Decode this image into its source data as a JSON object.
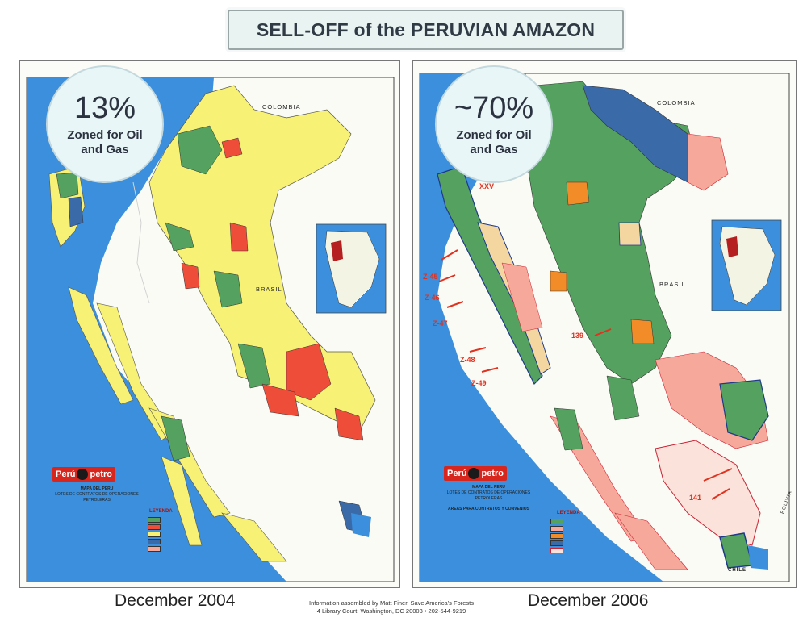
{
  "title": "SELL-OFF of the PERUVIAN AMAZON",
  "colors": {
    "ocean": "#3b8fdc",
    "oil_blocks_yellow": "#f7f275",
    "green_blocks": "#55a15f",
    "red_blocks": "#ee4d3a",
    "pink_blocks": "#f6a99b",
    "blue_blocks": "#3b6aa8",
    "orange_blocks": "#f28c28",
    "title_box_bg": "#e8f3f2"
  },
  "left_map": {
    "percent": "13%",
    "percent_caption": "Zoned for Oil and Gas",
    "date": "December 2004",
    "country_labels": {
      "colombia": "COLOMBIA",
      "brasil": "BRASIL"
    },
    "logo": {
      "left": "Perú",
      "right": "petro"
    },
    "map_title": "MAPA DEL PERU",
    "map_subtitle": "LOTES DE CONTRATOS DE OPERACIONES PETROLERAS",
    "legend_title": "LEYENDA"
  },
  "right_map": {
    "percent": "~70%",
    "percent_caption": "Zoned for Oil and Gas",
    "date": "December 2006",
    "country_labels": {
      "colombia": "COLOMBIA",
      "brasil": "BRASIL",
      "bolivia": "BOLIVIA",
      "chile": "CHILE"
    },
    "logo": {
      "left": "Perú",
      "right": "petro"
    },
    "map_title": "MAPA DEL PERU",
    "map_subtitle": "LOTES DE CONTRATOS DE OPERACIONES PETROLERAS",
    "map_subtitle2": "AREAS PARA CONTRATOS Y CONVENIOS",
    "legend_title": "LEYENDA",
    "lot_labels": [
      "XXV",
      "Z-45",
      "Z-46",
      "Z-47",
      "Z-48",
      "Z-49",
      "139",
      "141"
    ]
  },
  "credit": {
    "line1": "Information assembled by Matt Finer, Save America's Forests",
    "line2": "4 Library Court, Washington, DC 20003 • 202-544-9219"
  }
}
